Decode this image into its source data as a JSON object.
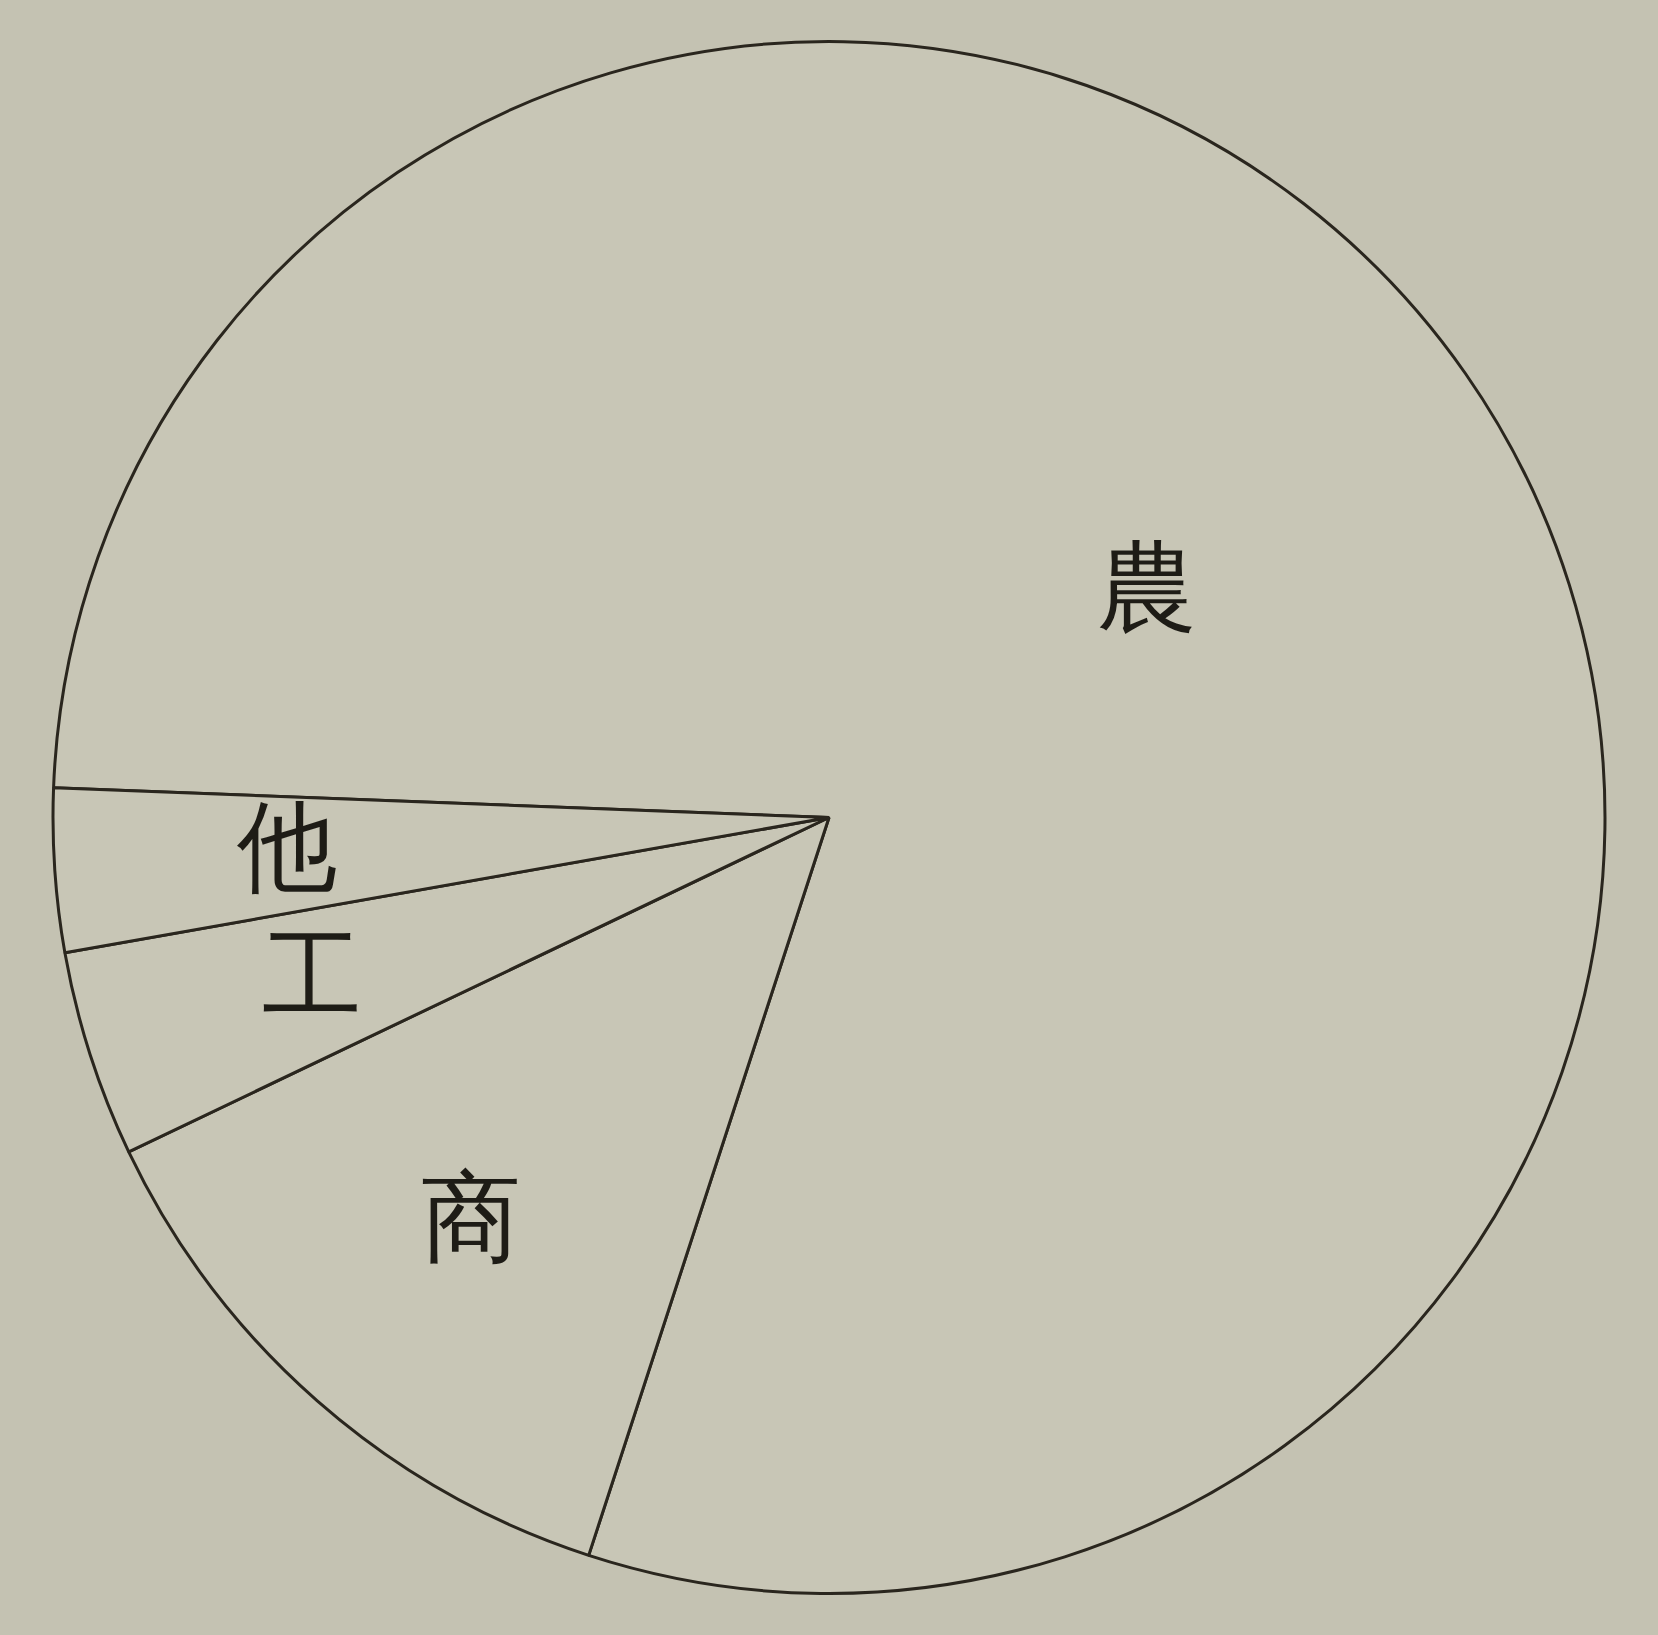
{
  "chart_data": {
    "type": "pie",
    "categories": [
      "農",
      "商",
      "工",
      "他"
    ],
    "values": [
      79.4,
      12.9,
      4.3,
      3.4
    ],
    "colors": [
      "#c8c6b6",
      "#c8c6b6",
      "#c8c6b6",
      "#c8c6b6"
    ]
  }
}
